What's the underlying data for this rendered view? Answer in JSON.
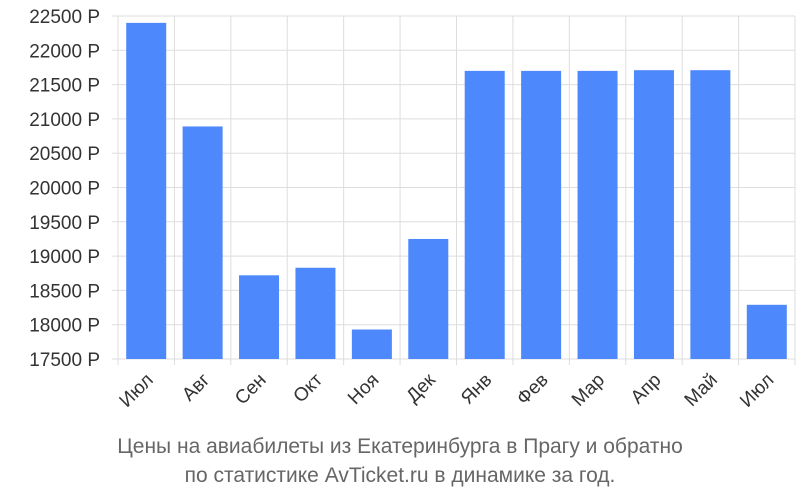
{
  "chart_data": {
    "type": "bar",
    "categories": [
      "Июл",
      "Авг",
      "Сен",
      "Окт",
      "Ноя",
      "Дек",
      "Янв",
      "Фев",
      "Мар",
      "Апр",
      "Май",
      "Июл"
    ],
    "values": [
      22400,
      20890,
      18720,
      18830,
      17930,
      19250,
      21700,
      21700,
      21700,
      21710,
      21710,
      18290
    ],
    "ylim": [
      17500,
      22500
    ],
    "yticks": [
      17500,
      18000,
      18500,
      19000,
      19500,
      20000,
      20500,
      21000,
      21500,
      22000,
      22500
    ],
    "ytick_labels": [
      "17500 Р",
      "18000 Р",
      "18500 Р",
      "19000 Р",
      "19500 Р",
      "20000 Р",
      "20500 Р",
      "21000 Р",
      "21500 Р",
      "22000 Р",
      "22500 Р"
    ],
    "title": "Цены на авиабилеты из Екатеринбурга в Прагу и обратно",
    "subtitle": "по статистике AvTicket.ru в динамике за год.",
    "grid": true,
    "colors": {
      "bar": "#4d88fd",
      "grid": "#dddddd",
      "text": "#333333",
      "caption": "#666666"
    }
  }
}
